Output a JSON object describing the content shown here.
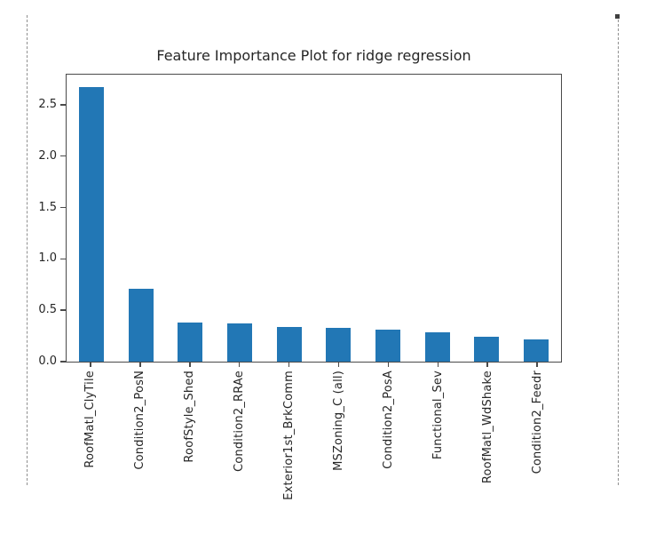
{
  "page": {
    "background": "#ffffff",
    "selection_border_color": "#8f8f8f",
    "selection_handle_color": "#3f3f3f"
  },
  "chart_data": {
    "type": "bar",
    "title": "Feature Importance Plot for ridge regression",
    "categories": [
      "RoofMatl_ClyTile",
      "Condition2_PosN",
      "RoofStyle_Shed",
      "Condition2_RRAe",
      "Exterior1st_BrkComm",
      "MSZoning_C (all)",
      "Condition2_PosA",
      "Functional_Sev",
      "RoofMatl_WdShake",
      "Condition2_Feedr"
    ],
    "values": [
      2.69,
      0.71,
      0.38,
      0.37,
      0.34,
      0.33,
      0.31,
      0.29,
      0.24,
      0.22
    ],
    "xlabel": "",
    "ylabel": "",
    "ylim": [
      0,
      2.81
    ],
    "yticks": [
      "0.0",
      "0.5",
      "1.0",
      "1.5",
      "2.0",
      "2.5"
    ],
    "bar_color": "#2277b5",
    "spine_color": "#4a4a4a",
    "text_color": "#262626",
    "grid": false,
    "legend": false,
    "x_tick_rotation": 90
  }
}
